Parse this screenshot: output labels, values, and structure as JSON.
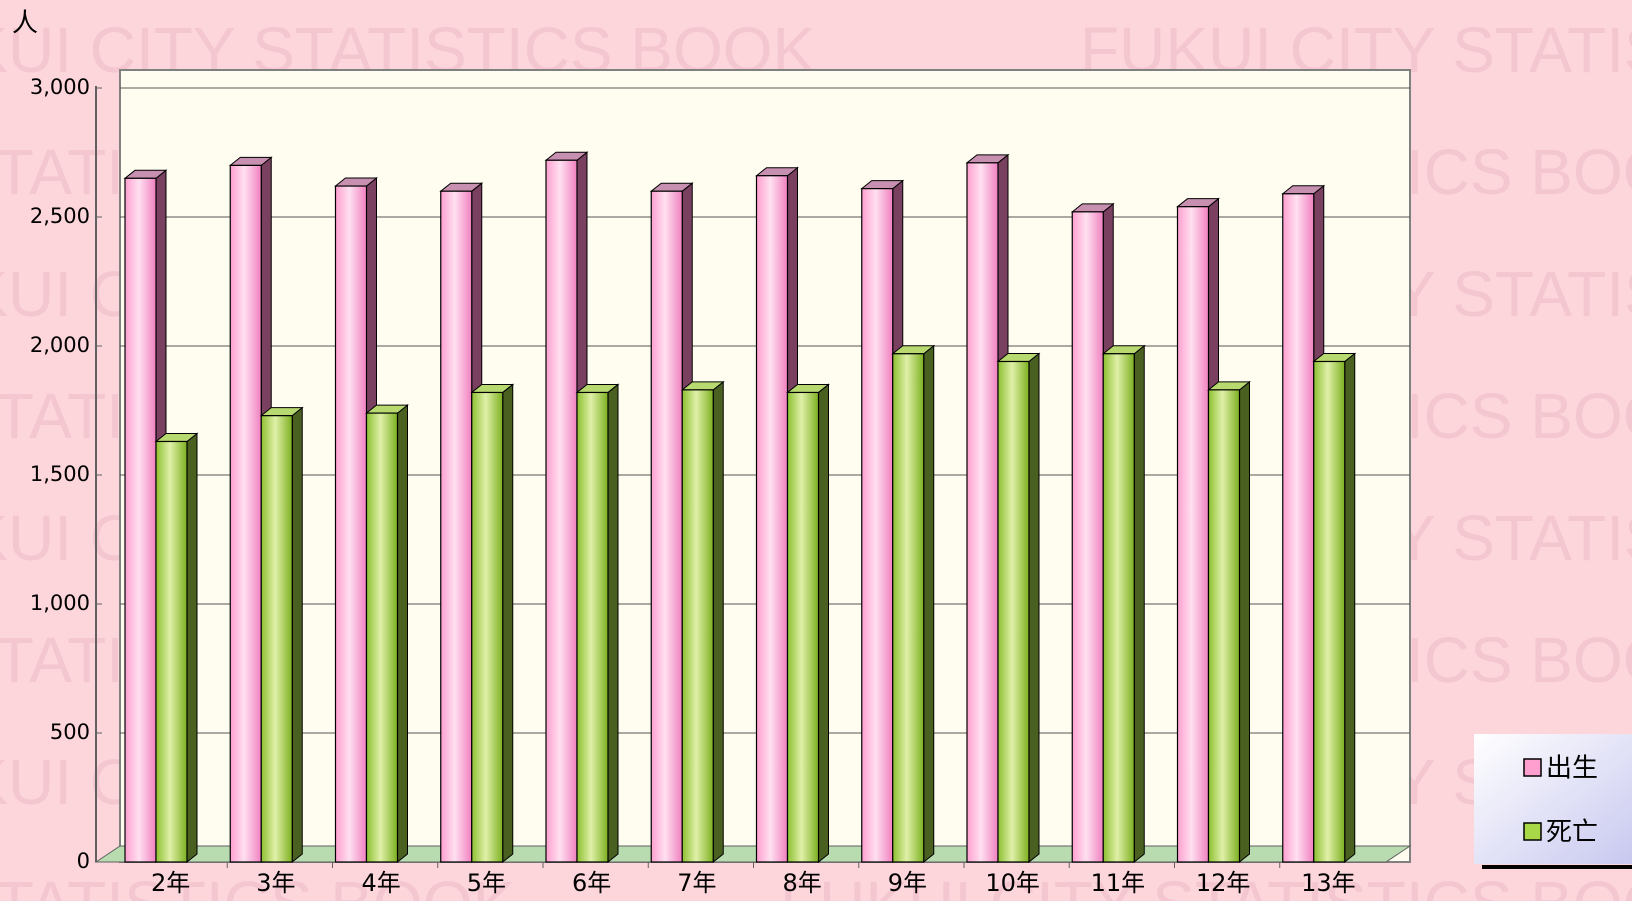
{
  "chart_data": {
    "type": "bar3d",
    "background_text": "FUKUI CITY STATISTICS BOOK",
    "y_axis_label": "人",
    "categories": [
      "2年",
      "3年",
      "4年",
      "5年",
      "6年",
      "7年",
      "8年",
      "9年",
      "10年",
      "11年",
      "12年",
      "13年"
    ],
    "series": [
      {
        "name": "出生",
        "color": "#ff9fd0",
        "values": [
          2650,
          2700,
          2620,
          2600,
          2720,
          2600,
          2660,
          2610,
          2710,
          2520,
          2540,
          2590
        ]
      },
      {
        "name": "死亡",
        "color": "#a8d848",
        "values": [
          1630,
          1730,
          1740,
          1820,
          1820,
          1830,
          1820,
          1970,
          1940,
          1970,
          1830,
          1940
        ]
      }
    ],
    "ylim": [
      0,
      3000
    ],
    "yticks": [
      0,
      {
        "value": 500,
        "label": "500"
      },
      {
        "value": 1000,
        "label": "1,000"
      },
      {
        "value": 1500,
        "label": "1,500"
      },
      {
        "value": 2000,
        "label": "2,000"
      },
      {
        "value": 2500,
        "label": "2,500"
      },
      {
        "value": 3000,
        "label": "3,000"
      }
    ],
    "grid": true,
    "legend": "bottom-right"
  }
}
